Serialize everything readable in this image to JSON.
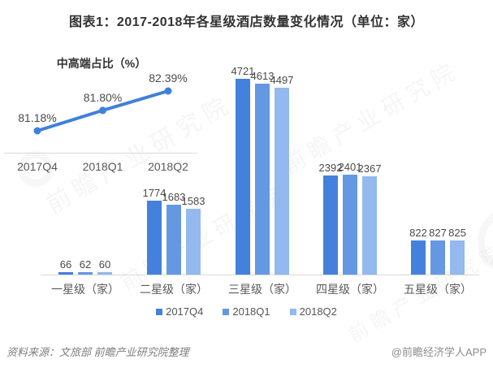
{
  "title": "图表1：2017-2018年各星级酒店数量变化情况（单位：家）",
  "watermark": {
    "text": "前瞻产业研究院"
  },
  "chart_data": [
    {
      "type": "line",
      "title": "中高端占比（%）",
      "x": [
        "2017Q4",
        "2018Q1",
        "2018Q2"
      ],
      "values": [
        81.18,
        81.8,
        82.39
      ],
      "point_labels": [
        "81.18%",
        "81.80%",
        "82.39%"
      ],
      "color": "#4080d9",
      "ylim": [
        81.0,
        82.6
      ],
      "grid": false,
      "legend_position": "none"
    },
    {
      "type": "bar",
      "categories": [
        "一星级（家）",
        "二星级（家）",
        "三星级（家）",
        "四星级（家）",
        "五星级（家）"
      ],
      "series": [
        {
          "name": "2017Q4",
          "color": "#4381dc",
          "values": [
            66,
            1774,
            4721,
            2392,
            822
          ]
        },
        {
          "name": "2018Q1",
          "color": "#6598e3",
          "values": [
            62,
            1683,
            4613,
            2401,
            827
          ]
        },
        {
          "name": "2018Q2",
          "color": "#93b9ee",
          "values": [
            60,
            1583,
            4497,
            2367,
            825
          ]
        }
      ],
      "ylim": [
        0,
        4721
      ],
      "grid": false,
      "legend_position": "bottom"
    }
  ],
  "footer": {
    "source": "资料来源：文旅部  前瞻产业研究院整理",
    "credit": "@前瞻经济学人APP"
  }
}
